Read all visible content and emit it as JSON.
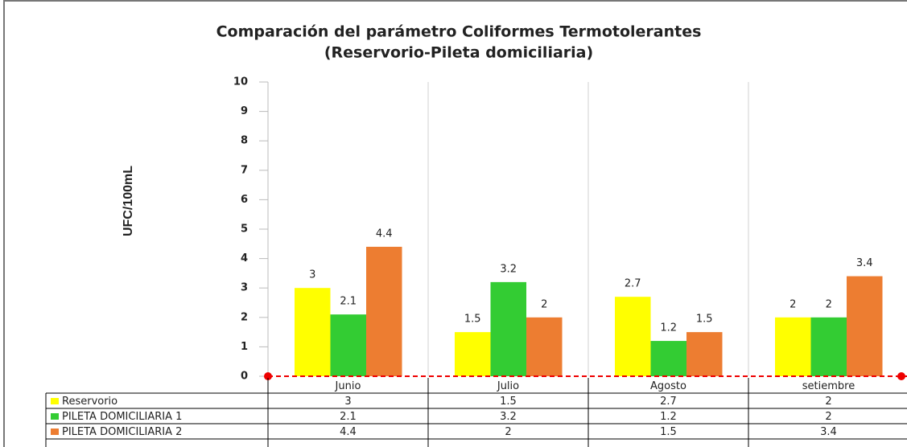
{
  "chart_data": {
    "type": "bar",
    "title": "Comparación  del parámetro Coliformes Termotolerantes",
    "subtitle": "(Reservorio-Pileta domiciliaria)",
    "y_label": "UFC/100mL",
    "categories": [
      "Junio",
      "Julio",
      "Agosto",
      "setiembre"
    ],
    "series": [
      {
        "name": "Reservorio",
        "color": "#ffff00",
        "values": [
          3,
          1.5,
          2.7,
          2
        ]
      },
      {
        "name": "PILETA DOMICILIARIA 1",
        "color": "#33cc33",
        "values": [
          2.1,
          3.2,
          1.2,
          2
        ]
      },
      {
        "name": "PILETA DOMICILIARIA 2",
        "color": "#ed7d31",
        "values": [
          4.4,
          2,
          1.5,
          3.4
        ]
      }
    ],
    "ylim": [
      0,
      10
    ],
    "yticks": [
      0,
      1,
      2,
      3,
      4,
      5,
      6,
      7,
      8,
      9,
      10
    ],
    "grid": true
  }
}
